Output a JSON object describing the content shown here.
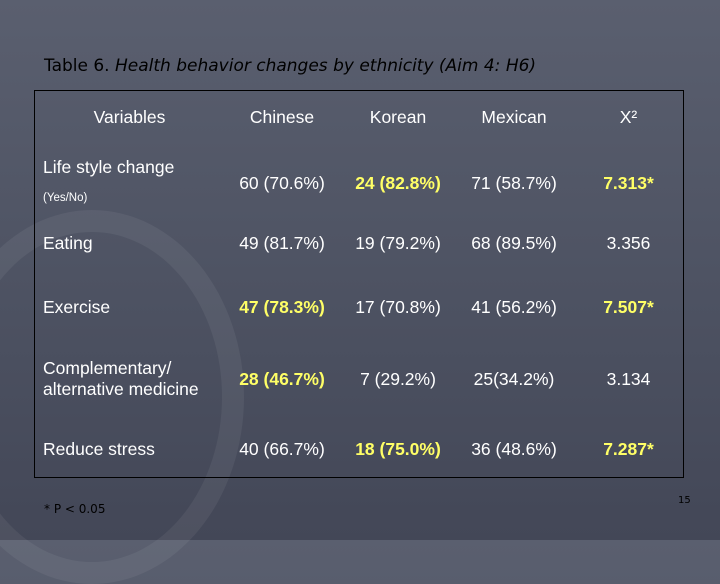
{
  "title": {
    "prefix": "Table 6. ",
    "italic": "Health behavior changes by ethnicity  (Aim 4: H6)"
  },
  "table": {
    "headers": [
      "Variables",
      "Chinese",
      "Korean",
      "Mexican",
      "X²"
    ],
    "rows": [
      {
        "label": "Life style change",
        "sublabel": "(Yes/No)",
        "chinese": "60 (70.6%)",
        "korean": "24 (82.8%)",
        "mexican": "71 (58.7%)",
        "x2": "7.313*"
      },
      {
        "label": "Eating",
        "chinese": "49 (81.7%)",
        "korean": "19 (79.2%)",
        "mexican": "68 (89.5%)",
        "x2": "3.356"
      },
      {
        "label": "Exercise",
        "chinese": "47 (78.3%)",
        "korean": "17 (70.8%)",
        "mexican": "41 (56.2%)",
        "x2": "7.507*"
      },
      {
        "label": "Complementary/ alternative medicine",
        "chinese": "28 (46.7%)",
        "korean": "7 (29.2%)",
        "mexican": "25(34.2%)",
        "x2": "3.134"
      },
      {
        "label": "Reduce stress",
        "chinese": "40 (66.7%)",
        "korean": "18 (75.0%)",
        "mexican": "36 (48.6%)",
        "x2": "7.287*"
      }
    ]
  },
  "footnote": "* P  < 0.05",
  "page_number": "15",
  "colors": {
    "highlight": "#ffff66",
    "text": "#ffffff",
    "background": "#4d5262"
  }
}
